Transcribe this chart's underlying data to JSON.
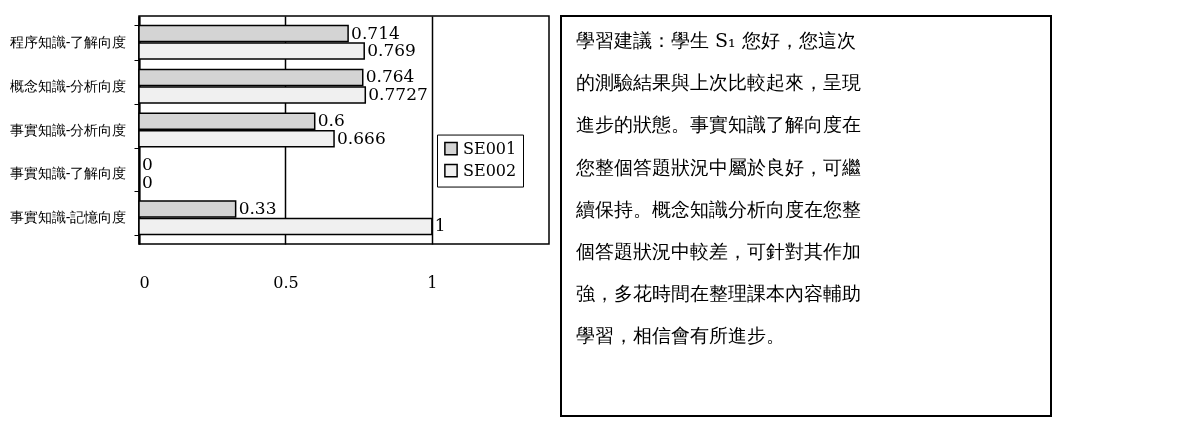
{
  "chart_data": [
    {
      "type": "bar",
      "orientation": "horizontal",
      "categories": [
        "程序知識-了解向度",
        "概念知識-分析向度",
        "事實知識-分析向度",
        "事實知識-了解向度",
        "事實知識-記憶向度"
      ],
      "series": [
        {
          "name": "SE001",
          "color": "#d4d4d4",
          "values": [
            0.714,
            0.764,
            0.6,
            0,
            0.33
          ]
        },
        {
          "name": "SE002",
          "color": "#f0f0f0",
          "values": [
            0.769,
            0.7727,
            0.666,
            0,
            1
          ]
        }
      ],
      "xlim": [
        0,
        1.4
      ],
      "xticks": [
        0,
        0.5,
        1
      ],
      "grid": "x",
      "legend": "right",
      "data_labels": true
    },
    {
      "type": "other",
      "annotations": [
        "學習建議：學生 S₁ 您好，您這次",
        "的測驗結果與上次比較起來，呈現",
        "進步的狀態。事實知識了解向度在",
        "您整個答題狀況中屬於良好，可繼",
        "續保持。概念知識分析向度在您整",
        "個答題狀況中較差，可針對其作加",
        "強，多花時間在整理課本內容輔助",
        "學習，相信會有所進步。"
      ]
    }
  ]
}
